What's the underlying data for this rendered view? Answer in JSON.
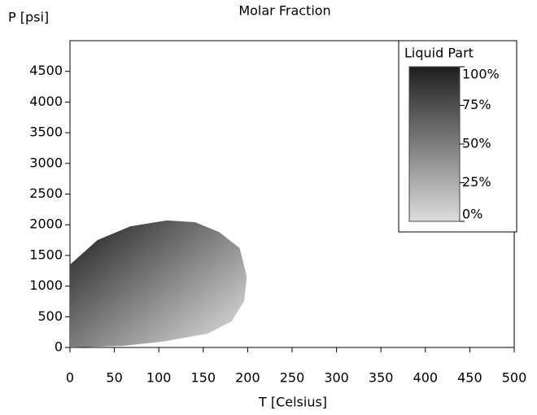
{
  "chart_data": {
    "type": "area",
    "title": "Molar Fraction",
    "xlabel": "T [Celsius]",
    "ylabel": "P [psi]",
    "x": [
      0,
      31,
      68,
      109,
      141,
      168,
      191,
      199,
      196,
      182,
      155,
      104,
      59,
      0
    ],
    "values": [
      1350,
      1750,
      1975,
      2070,
      2040,
      1880,
      1620,
      1150,
      760,
      425,
      225,
      95,
      25,
      0
    ],
    "xlim": [
      0,
      500
    ],
    "xticks": [
      0,
      50,
      100,
      150,
      200,
      250,
      300,
      350,
      400,
      450,
      500
    ],
    "ylim": [
      0,
      5000
    ],
    "yticks": [
      0,
      500,
      1000,
      1500,
      2000,
      2500,
      3000,
      3500,
      4000,
      4500
    ],
    "colorbar": {
      "title": "Liquid Part",
      "clim": [
        0,
        100
      ],
      "colormap": [
        "#dcdcdc",
        "#1e1e1e"
      ],
      "ticks": [
        {
          "value": 0,
          "label": "0%"
        },
        {
          "value": 25,
          "label": "25%"
        },
        {
          "value": 50,
          "label": "50%"
        },
        {
          "value": 75,
          "label": "75%"
        },
        {
          "value": 100,
          "label": "100%"
        }
      ]
    }
  }
}
